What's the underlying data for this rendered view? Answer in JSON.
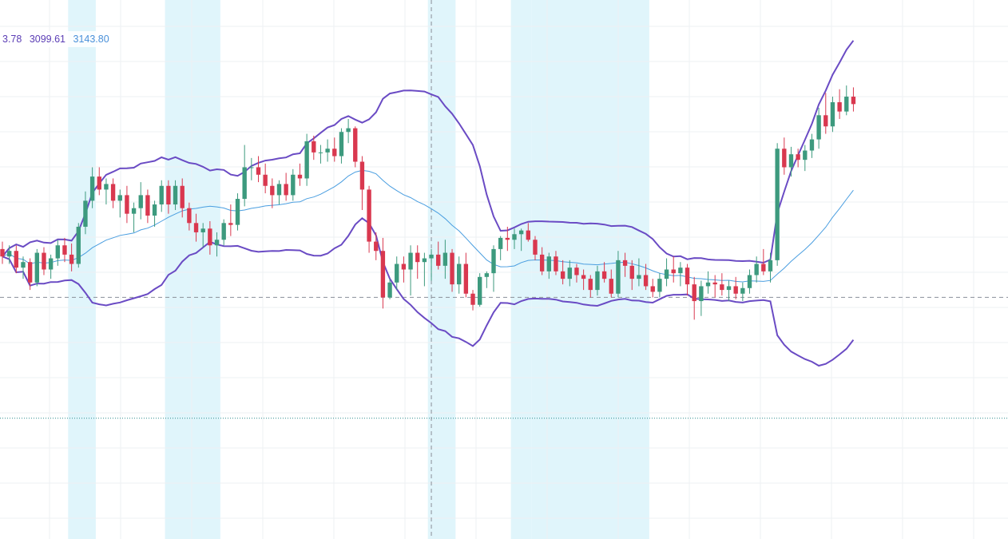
{
  "legend": {
    "upper": "3.78",
    "lower": "3099.61",
    "basis": "3143.80",
    "upper_color": "#5b3db5",
    "lower_color": "#5b3db5",
    "basis_color": "#4a90d9"
  },
  "colors": {
    "up": "#3d9a7e",
    "down": "#d9384f",
    "band": "#6a4bc4",
    "basis": "#4a9ee0",
    "highlight": "#e0f5fb",
    "grid": "#eef0f3",
    "crosshair": "#8a8f99",
    "level": "#2a8c8c"
  },
  "chart_data": {
    "type": "candlestick",
    "indicator": "Bollinger Bands",
    "ylim": [
      2970,
      3260
    ],
    "x": [
      0,
      145
    ],
    "reference_lines": [
      {
        "style": "dashed",
        "value": 3100
      },
      {
        "style": "dotted",
        "value": 3035
      }
    ],
    "crosshair_x": 62,
    "highlight_ranges": [
      [
        10,
        13
      ],
      [
        24,
        31
      ],
      [
        62,
        65
      ],
      [
        74,
        76
      ],
      [
        77,
        93
      ]
    ],
    "candles": [
      [
        3126,
        3130,
        3118,
        3122
      ],
      [
        3122,
        3128,
        3118,
        3125
      ],
      [
        3125,
        3128,
        3113,
        3116
      ],
      [
        3116,
        3122,
        3110,
        3119
      ],
      [
        3119,
        3121,
        3104,
        3108
      ],
      [
        3108,
        3126,
        3106,
        3124
      ],
      [
        3124,
        3127,
        3112,
        3115
      ],
      [
        3115,
        3123,
        3110,
        3121
      ],
      [
        3121,
        3131,
        3117,
        3128
      ],
      [
        3128,
        3132,
        3119,
        3123
      ],
      [
        3123,
        3129,
        3114,
        3118
      ],
      [
        3118,
        3140,
        3116,
        3138
      ],
      [
        3138,
        3157,
        3134,
        3152
      ],
      [
        3152,
        3170,
        3148,
        3165
      ],
      [
        3165,
        3170,
        3155,
        3158
      ],
      [
        3158,
        3164,
        3150,
        3161
      ],
      [
        3161,
        3164,
        3148,
        3152
      ],
      [
        3152,
        3158,
        3143,
        3155
      ],
      [
        3155,
        3160,
        3140,
        3145
      ],
      [
        3145,
        3151,
        3135,
        3148
      ],
      [
        3148,
        3162,
        3142,
        3155
      ],
      [
        3155,
        3158,
        3140,
        3144
      ],
      [
        3144,
        3152,
        3138,
        3150
      ],
      [
        3150,
        3163,
        3146,
        3160
      ],
      [
        3160,
        3163,
        3145,
        3150
      ],
      [
        3150,
        3163,
        3147,
        3160
      ],
      [
        3160,
        3164,
        3143,
        3148
      ],
      [
        3148,
        3151,
        3136,
        3140
      ],
      [
        3140,
        3145,
        3130,
        3135
      ],
      [
        3135,
        3140,
        3127,
        3137
      ],
      [
        3137,
        3141,
        3123,
        3128
      ],
      [
        3128,
        3135,
        3122,
        3131
      ],
      [
        3131,
        3142,
        3128,
        3140
      ],
      [
        3140,
        3150,
        3133,
        3139
      ],
      [
        3139,
        3156,
        3136,
        3153
      ],
      [
        3153,
        3182,
        3149,
        3170
      ],
      [
        3170,
        3175,
        3163,
        3170
      ],
      [
        3170,
        3176,
        3162,
        3166
      ],
      [
        3166,
        3172,
        3156,
        3160
      ],
      [
        3160,
        3164,
        3148,
        3155
      ],
      [
        3155,
        3163,
        3150,
        3161
      ],
      [
        3161,
        3167,
        3152,
        3155
      ],
      [
        3155,
        3169,
        3152,
        3166
      ],
      [
        3166,
        3172,
        3160,
        3164
      ],
      [
        3164,
        3188,
        3160,
        3184
      ],
      [
        3184,
        3187,
        3174,
        3178
      ],
      [
        3178,
        3182,
        3172,
        3178
      ],
      [
        3178,
        3185,
        3173,
        3180
      ],
      [
        3180,
        3186,
        3173,
        3176
      ],
      [
        3176,
        3191,
        3172,
        3189
      ],
      [
        3189,
        3196,
        3183,
        3191
      ],
      [
        3191,
        3192,
        3170,
        3173
      ],
      [
        3173,
        3176,
        3147,
        3158
      ],
      [
        3158,
        3160,
        3124,
        3130
      ],
      [
        3130,
        3135,
        3120,
        3125
      ],
      [
        3125,
        3132,
        3094,
        3100
      ],
      [
        3100,
        3110,
        3099,
        3108
      ],
      [
        3108,
        3122,
        3104,
        3118
      ],
      [
        3118,
        3122,
        3108,
        3115
      ],
      [
        3115,
        3128,
        3101,
        3124
      ],
      [
        3124,
        3128,
        3110,
        3119
      ],
      [
        3119,
        3124,
        3106,
        3121
      ],
      [
        3121,
        3126,
        3109,
        3123
      ],
      [
        3123,
        3130,
        3115,
        3117
      ],
      [
        3117,
        3131,
        3110,
        3124
      ],
      [
        3124,
        3126,
        3103,
        3107
      ],
      [
        3107,
        3122,
        3102,
        3118
      ],
      [
        3118,
        3124,
        3100,
        3102
      ],
      [
        3102,
        3104,
        3093,
        3096
      ],
      [
        3096,
        3113,
        3095,
        3111
      ],
      [
        3111,
        3114,
        3105,
        3113
      ],
      [
        3113,
        3128,
        3103,
        3126
      ],
      [
        3126,
        3133,
        3120,
        3132
      ],
      [
        3132,
        3138,
        3125,
        3131
      ],
      [
        3131,
        3137,
        3126,
        3134
      ],
      [
        3134,
        3137,
        3125,
        3136
      ],
      [
        3136,
        3140,
        3130,
        3131
      ],
      [
        3131,
        3133,
        3120,
        3123
      ],
      [
        3123,
        3127,
        3112,
        3114
      ],
      [
        3114,
        3124,
        3110,
        3122
      ],
      [
        3122,
        3125,
        3112,
        3114
      ],
      [
        3114,
        3120,
        3107,
        3110
      ],
      [
        3110,
        3120,
        3106,
        3116
      ],
      [
        3116,
        3118,
        3108,
        3112
      ],
      [
        3112,
        3115,
        3104,
        3110
      ],
      [
        3110,
        3112,
        3100,
        3104
      ],
      [
        3104,
        3117,
        3101,
        3114
      ],
      [
        3114,
        3119,
        3108,
        3110
      ],
      [
        3110,
        3115,
        3100,
        3102
      ],
      [
        3102,
        3125,
        3100,
        3120
      ],
      [
        3120,
        3124,
        3111,
        3117
      ],
      [
        3117,
        3120,
        3104,
        3110
      ],
      [
        3110,
        3121,
        3106,
        3112
      ],
      [
        3112,
        3118,
        3104,
        3106
      ],
      [
        3106,
        3110,
        3100,
        3103
      ],
      [
        3103,
        3113,
        3100,
        3110
      ],
      [
        3110,
        3121,
        3106,
        3115
      ],
      [
        3115,
        3122,
        3108,
        3113
      ],
      [
        3113,
        3119,
        3106,
        3116
      ],
      [
        3116,
        3118,
        3101,
        3107
      ],
      [
        3107,
        3111,
        3088,
        3098
      ],
      [
        3098,
        3109,
        3090,
        3106
      ],
      [
        3106,
        3114,
        3102,
        3108
      ],
      [
        3108,
        3112,
        3100,
        3107
      ],
      [
        3107,
        3113,
        3101,
        3104
      ],
      [
        3104,
        3109,
        3098,
        3106
      ],
      [
        3106,
        3111,
        3099,
        3102
      ],
      [
        3102,
        3108,
        3098,
        3105
      ],
      [
        3105,
        3115,
        3102,
        3112
      ],
      [
        3112,
        3122,
        3108,
        3118
      ],
      [
        3118,
        3126,
        3112,
        3114
      ],
      [
        3114,
        3124,
        3108,
        3120
      ],
      [
        3120,
        3183,
        3117,
        3180
      ],
      [
        3180,
        3186,
        3166,
        3170
      ],
      [
        3170,
        3181,
        3165,
        3177
      ],
      [
        3177,
        3180,
        3170,
        3174
      ],
      [
        3174,
        3182,
        3168,
        3179
      ],
      [
        3179,
        3188,
        3175,
        3185
      ],
      [
        3185,
        3202,
        3180,
        3198
      ],
      [
        3198,
        3210,
        3188,
        3192
      ],
      [
        3192,
        3208,
        3189,
        3205
      ],
      [
        3205,
        3212,
        3196,
        3200
      ],
      [
        3200,
        3214,
        3198,
        3208
      ],
      [
        3208,
        3213,
        3200,
        3204
      ]
    ]
  }
}
